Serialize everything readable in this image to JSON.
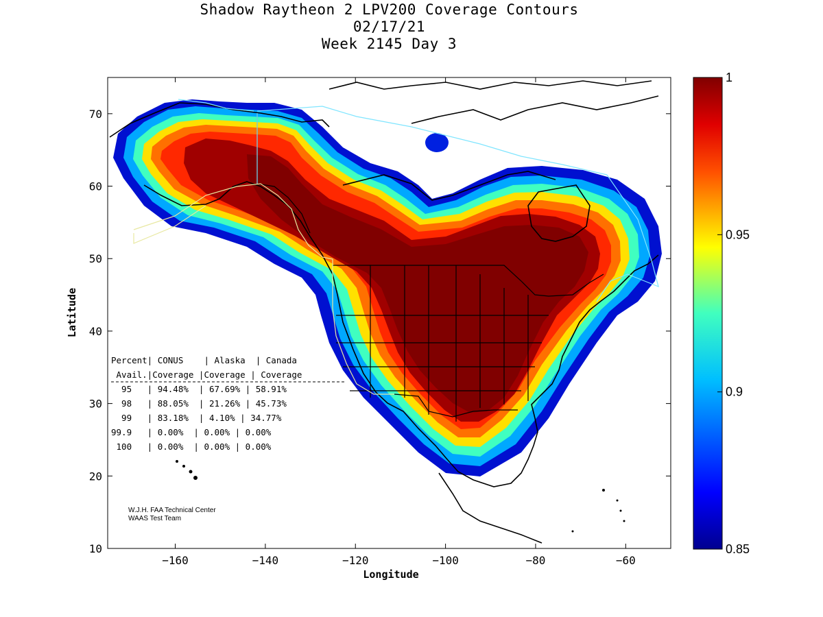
{
  "title": {
    "line1": "Shadow Raytheon 2 LPV200 Coverage Contours",
    "line2": "02/17/21",
    "line3": "Week 2145 Day 3"
  },
  "axes": {
    "xlabel": "Longitude",
    "ylabel": "Latitude",
    "xlim": [
      -175,
      -50
    ],
    "ylim": [
      10,
      75
    ],
    "xticks": [
      -160,
      -140,
      -120,
      -100,
      -80,
      -60
    ],
    "yticks": [
      10,
      20,
      30,
      40,
      50,
      60,
      70
    ]
  },
  "colorbar": {
    "min": 0.85,
    "max": 1,
    "labels": [
      {
        "value": 1,
        "text": "1"
      },
      {
        "value": 0.95,
        "text": "0.95"
      },
      {
        "value": 0.9,
        "text": "0.9"
      },
      {
        "value": 0.85,
        "text": "0.85"
      }
    ]
  },
  "table": {
    "header1": "Percent| CONUS    | Alaska  | Canada",
    "header2": " Avail.|Coverage |Coverage | Coverage",
    "rows": [
      "  95   | 94.48%  | 67.69% | 58.91%",
      "  98   | 88.05%  | 21.26% | 45.73%",
      "  99   | 83.18%  | 4.10% | 34.77%",
      "99.9   | 0.00%  | 0.00% | 0.00%",
      " 100   | 0.00%  | 0.00% | 0.00%"
    ]
  },
  "credits": {
    "line1": "W.J.H. FAA Technical Center",
    "line2": "WAAS Test Team"
  },
  "colors": {
    "max": "#800000",
    "high": "#ff2000",
    "mid": "#ffff00",
    "low_mid": "#00d0ff",
    "min": "#000080"
  }
}
